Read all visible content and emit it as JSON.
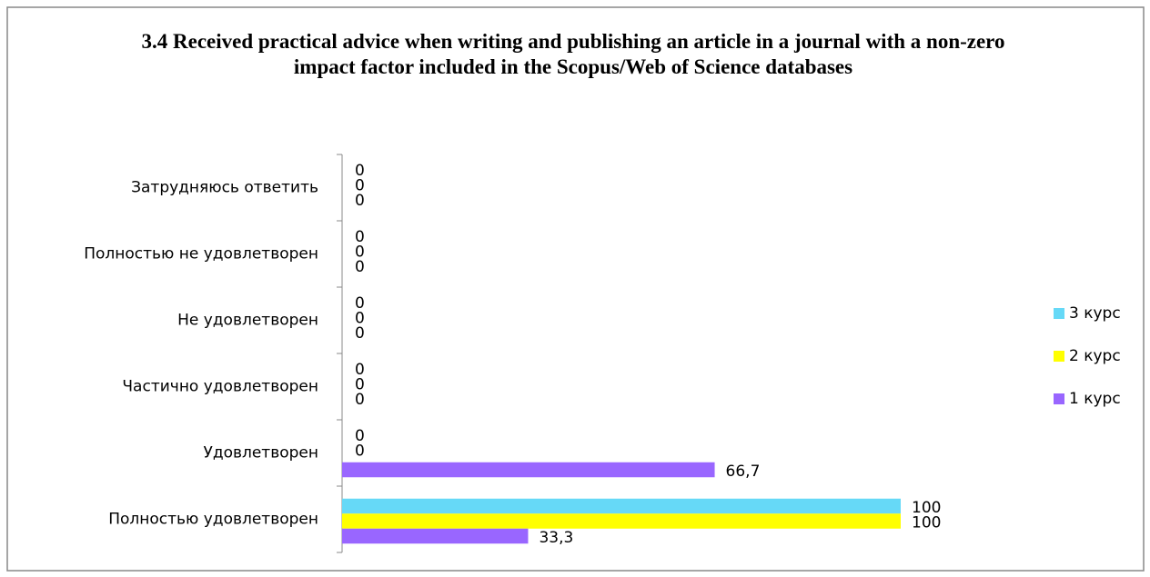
{
  "chart_data": {
    "type": "bar",
    "orientation": "horizontal",
    "title": "3.4 Received practical advice when writing and publishing an article in a journal with a non-zero impact factor included in the Scopus/Web of Science databases",
    "categories": [
      "Затрудняюсь ответить",
      "Полностью не удовлетворен",
      "Не удовлетворен",
      "Частично удовлетворен",
      "Удовлетворен",
      "Полностью удовлетворен"
    ],
    "series": [
      {
        "name": "3 курс",
        "color": "#66d9f7",
        "values": [
          0,
          0,
          0,
          0,
          0,
          100
        ]
      },
      {
        "name": "2 курс",
        "color": "#ffff00",
        "values": [
          0,
          0,
          0,
          0,
          0,
          100
        ]
      },
      {
        "name": "1 курс",
        "color": "#9966ff",
        "values": [
          0,
          0,
          0,
          0,
          66.7,
          33.3
        ],
        "value_labels": [
          "0",
          "0",
          "0",
          "0",
          "66,7",
          "33,3"
        ]
      }
    ],
    "legend": "right"
  }
}
